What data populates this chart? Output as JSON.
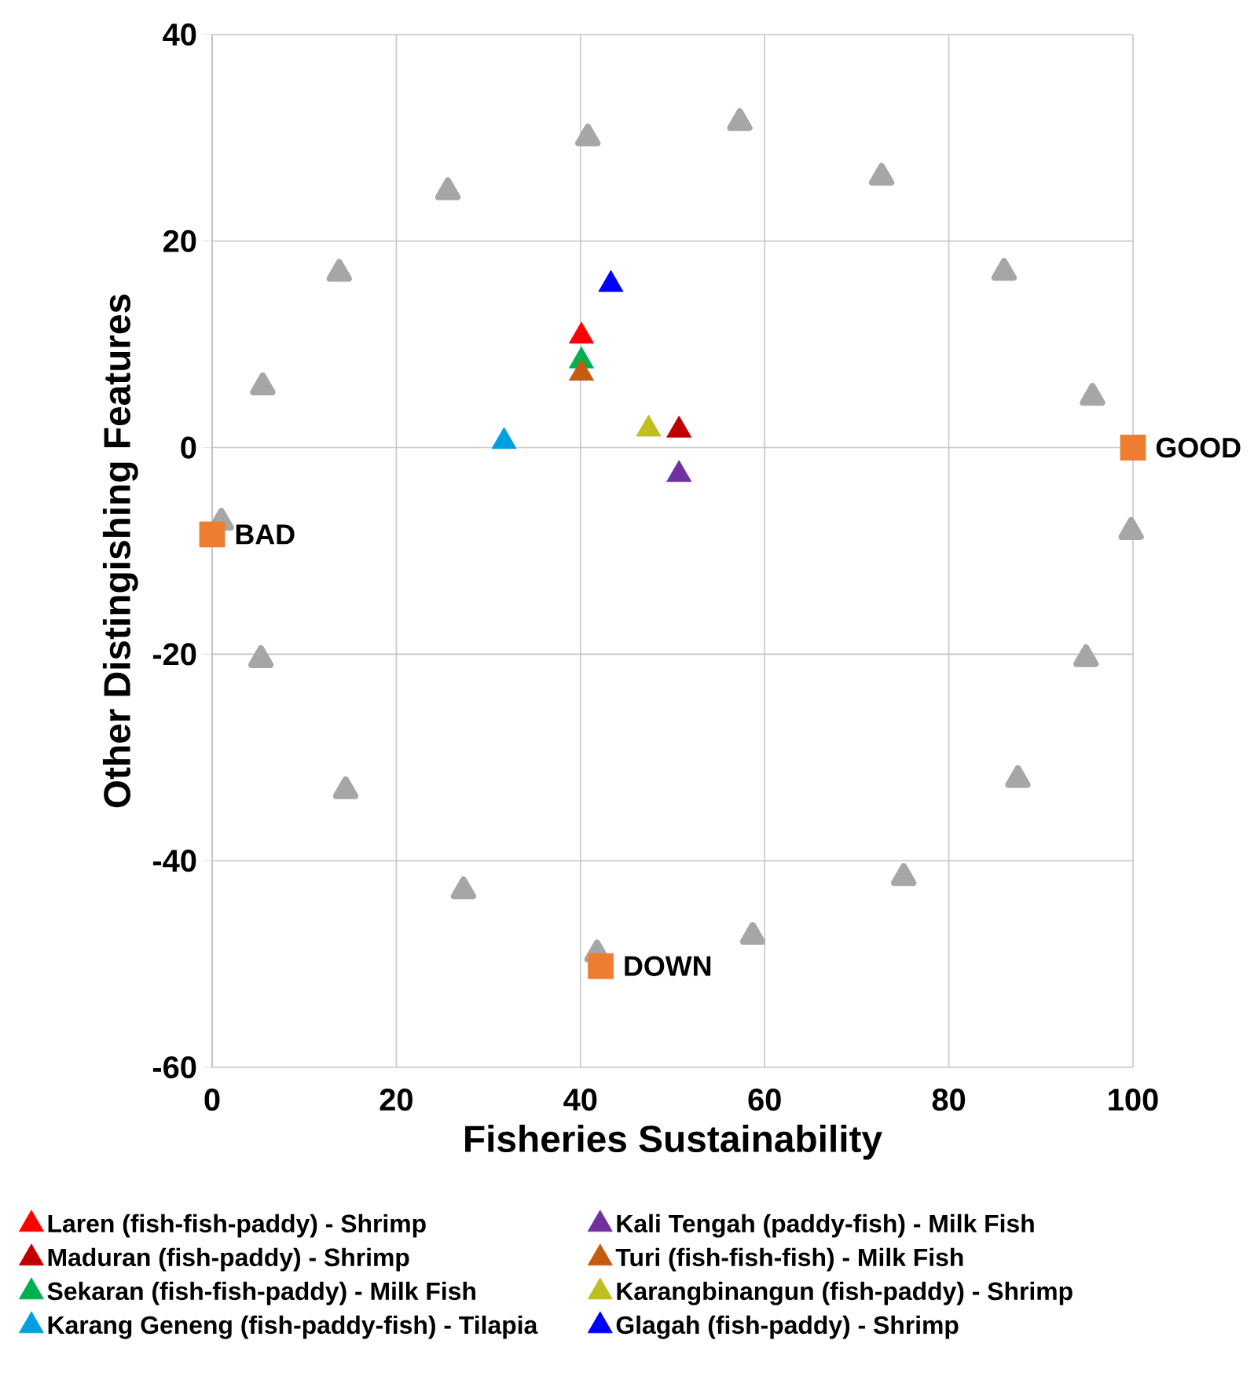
{
  "chart_data": {
    "type": "scatter",
    "xlabel": "Fisheries Sustainability",
    "ylabel": "Other Distingishing Features",
    "xlim": [
      0,
      100
    ],
    "xticks": [
      0,
      20,
      40,
      60,
      80,
      100
    ],
    "ylim": [
      -60,
      40
    ],
    "yticks": [
      -60,
      -40,
      -20,
      0,
      20,
      40
    ],
    "grid": true,
    "legend": "bottom",
    "series": [
      {
        "color": "#a6a6a6",
        "marker": "triangle",
        "x": [
          1.0,
          5.3,
          14.5,
          27.3,
          41.8,
          58.7,
          75.1,
          87.5,
          94.9,
          99.8,
          95.6,
          86.0,
          72.7,
          57.3,
          40.8,
          25.6,
          13.8,
          5.5
        ],
        "values": [
          -7.2,
          -20.5,
          -33.2,
          -42.9,
          -49.0,
          -47.3,
          -41.6,
          -32.1,
          -20.4,
          -8.1,
          4.9,
          17.0,
          26.2,
          31.5,
          30.0,
          24.8,
          16.9,
          5.9
        ]
      },
      {
        "color": "#ed7d31",
        "marker": "square",
        "x": [
          0.0,
          100.0,
          42.2
        ],
        "values": [
          -8.4,
          0.0,
          -50.2
        ]
      },
      {
        "name": "Laren (fish-fish-paddy)  - Shrimp",
        "color": "#ff0000",
        "marker": "triangle",
        "x": [
          40.1
        ],
        "values": [
          10.8
        ]
      },
      {
        "name": "Maduran (fish-paddy)  - Shrimp",
        "color": "#c00000",
        "marker": "triangle",
        "x": [
          50.7
        ],
        "values": [
          1.7
        ]
      },
      {
        "name": "Sekaran (fish-fish-paddy)  - Milk Fish",
        "color": "#00b050",
        "marker": "triangle",
        "x": [
          40.1
        ],
        "values": [
          8.4
        ]
      },
      {
        "name": "Karang Geneng (fish-paddy-fish)  - Tilapia",
        "color": "#00a0e0",
        "marker": "triangle",
        "x": [
          31.7
        ],
        "values": [
          0.6
        ]
      },
      {
        "name": "Kali Tengah (paddy-fish)  - Milk Fish",
        "color": "#7030a0",
        "marker": "triangle",
        "x": [
          50.7
        ],
        "values": [
          -2.6
        ]
      },
      {
        "name": "Turi (fish-fish-fish)  - Milk Fish",
        "color": "#c55a11",
        "marker": "triangle",
        "x": [
          40.1
        ],
        "values": [
          7.2
        ]
      },
      {
        "name": "Karangbinangun (fish-paddy)  - Shrimp",
        "color": "#bfbf1f",
        "marker": "triangle",
        "x": [
          47.4
        ],
        "values": [
          1.8
        ]
      },
      {
        "name": "Glagah (fish-paddy)  - Shrimp",
        "color": "#0000ff",
        "marker": "triangle",
        "x": [
          43.3
        ],
        "values": [
          15.8
        ]
      }
    ],
    "annotations": [
      {
        "text": "BAD",
        "x": 0.0,
        "y": -8.4
      },
      {
        "text": "GOOD",
        "x": 100.0,
        "y": 0.0
      },
      {
        "text": "DOWN",
        "x": 42.2,
        "y": -50.2
      }
    ]
  }
}
